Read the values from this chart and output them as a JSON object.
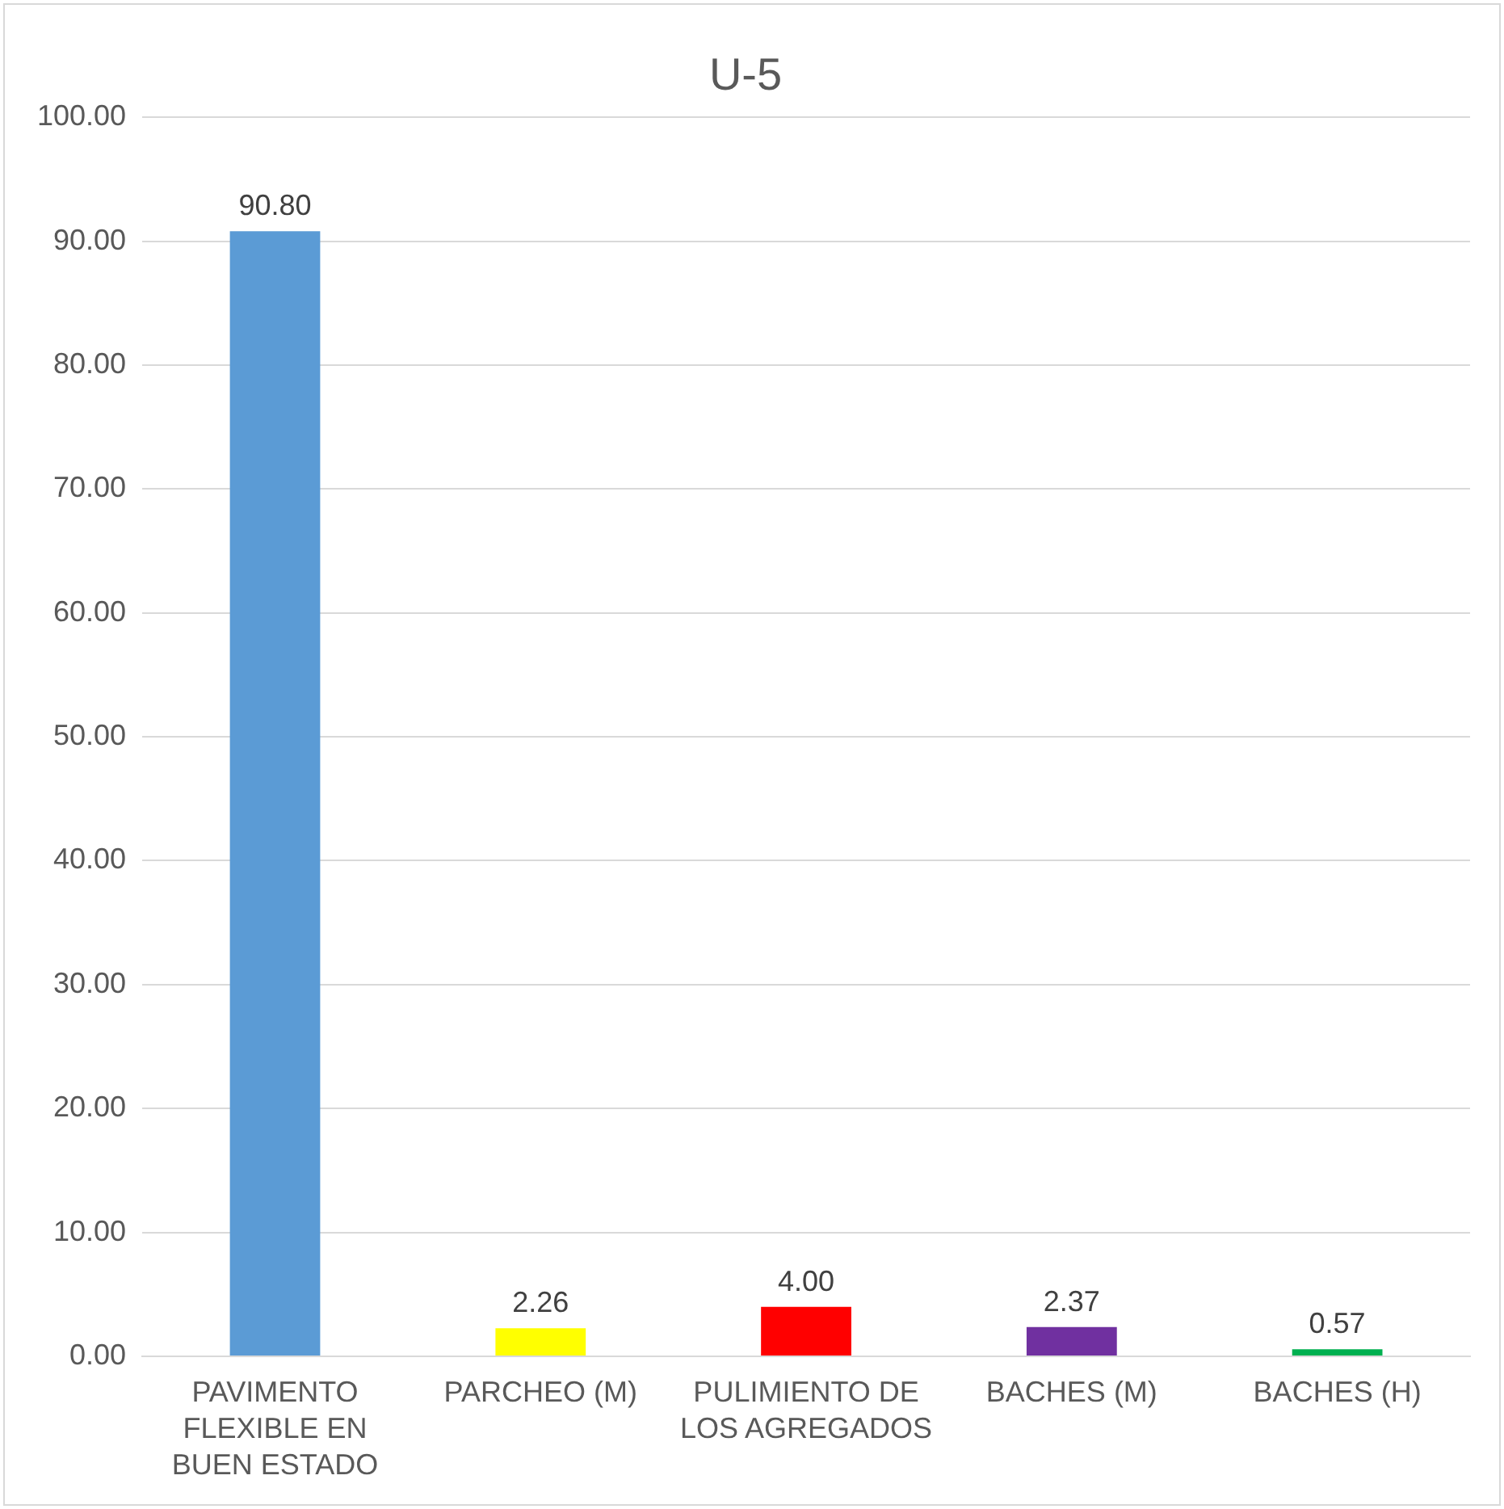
{
  "chart_data": {
    "type": "bar",
    "title": "U-5",
    "categories": [
      "PAVIMENTO FLEXIBLE EN BUEN ESTADO",
      "PARCHEO (M)",
      "PULIMIENTO DE LOS AGREGADOS",
      "BACHES (M)",
      "BACHES (H)"
    ],
    "values": [
      90.8,
      2.26,
      4,
      2.37,
      0.57
    ],
    "colors": [
      "#5b9bd5",
      "#ffff00",
      "#ff0000",
      "#7030a0",
      "#00b050"
    ],
    "value_labels": [
      "90.80",
      "2.26",
      "4.00",
      "2.37",
      "0.57"
    ],
    "ylim": [
      0,
      100
    ],
    "yticks": [
      {
        "value": 0,
        "label": "0.00"
      },
      {
        "value": 10,
        "label": "10.00"
      },
      {
        "value": 20,
        "label": "20.00"
      },
      {
        "value": 30,
        "label": "30.00"
      },
      {
        "value": 40,
        "label": "40.00"
      },
      {
        "value": 50,
        "label": "50.00"
      },
      {
        "value": 60,
        "label": "60.00"
      },
      {
        "value": 70,
        "label": "70.00"
      },
      {
        "value": 80,
        "label": "80.00"
      },
      {
        "value": 90,
        "label": "90.00"
      },
      {
        "value": 100,
        "label": "100.00"
      }
    ],
    "grid": "y",
    "legend": false
  }
}
